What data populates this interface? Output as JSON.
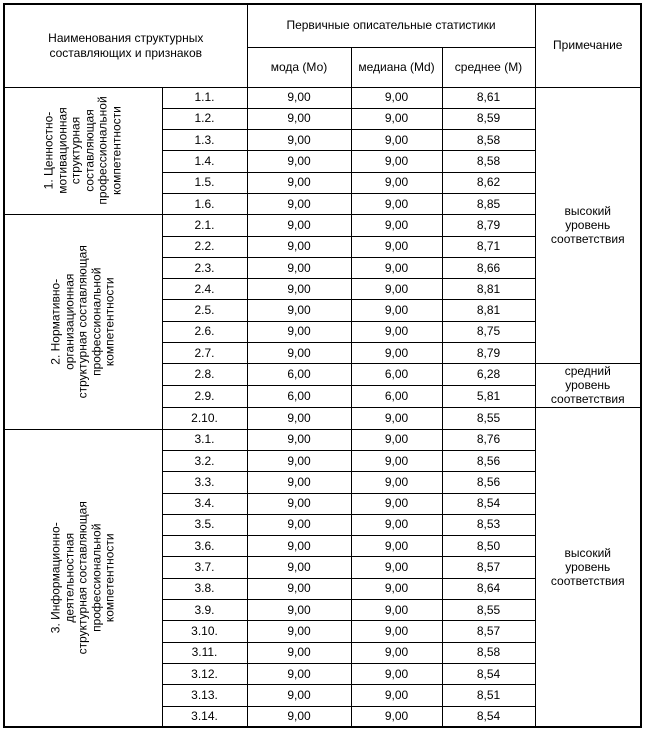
{
  "table": {
    "header": {
      "names_col": "Наименования структурных составляющих и признаков",
      "stats_group": "Первичные описательные статистики",
      "stats_cols": [
        "мода (Мо)",
        "медиана (Md)",
        "среднее (М)"
      ],
      "note_col": "Примечание"
    },
    "groups": [
      {
        "label": "1. Ценностно-мотивационная структурная составляющая профессиональной компетентности",
        "rows": [
          {
            "id": "1.1.",
            "mo": "9,00",
            "md": "9,00",
            "m": "8,61"
          },
          {
            "id": "1.2.",
            "mo": "9,00",
            "md": "9,00",
            "m": "8,59"
          },
          {
            "id": "1.3.",
            "mo": "9,00",
            "md": "9,00",
            "m": "8,58"
          },
          {
            "id": "1.4.",
            "mo": "9,00",
            "md": "9,00",
            "m": "8,58"
          },
          {
            "id": "1.5.",
            "mo": "9,00",
            "md": "9,00",
            "m": "8,62"
          },
          {
            "id": "1.6.",
            "mo": "9,00",
            "md": "9,00",
            "m": "8,85"
          }
        ]
      },
      {
        "label": "2. Нормативно-организационная структурная составляющая профессиональной компетентности",
        "rows": [
          {
            "id": "2.1.",
            "mo": "9,00",
            "md": "9,00",
            "m": "8,79"
          },
          {
            "id": "2.2.",
            "mo": "9,00",
            "md": "9,00",
            "m": "8,71"
          },
          {
            "id": "2.3.",
            "mo": "9,00",
            "md": "9,00",
            "m": "8,66"
          },
          {
            "id": "2.4.",
            "mo": "9,00",
            "md": "9,00",
            "m": "8,81"
          },
          {
            "id": "2.5.",
            "mo": "9,00",
            "md": "9,00",
            "m": "8,81"
          },
          {
            "id": "2.6.",
            "mo": "9,00",
            "md": "9,00",
            "m": "8,75"
          },
          {
            "id": "2.7.",
            "mo": "9,00",
            "md": "9,00",
            "m": "8,79"
          },
          {
            "id": "2.8.",
            "mo": "6,00",
            "md": "6,00",
            "m": "6,28"
          },
          {
            "id": "2.9.",
            "mo": "6,00",
            "md": "6,00",
            "m": "5,81"
          },
          {
            "id": "2.10.",
            "mo": "9,00",
            "md": "9,00",
            "m": "8,55"
          }
        ]
      },
      {
        "label": "3. Информационно-деятельностная структурная составляющая профессиональной компетентности",
        "rows": [
          {
            "id": "3.1.",
            "mo": "9,00",
            "md": "9,00",
            "m": "8,76"
          },
          {
            "id": "3.2.",
            "mo": "9,00",
            "md": "9,00",
            "m": "8,56"
          },
          {
            "id": "3.3.",
            "mo": "9,00",
            "md": "9,00",
            "m": "8,56"
          },
          {
            "id": "3.4.",
            "mo": "9,00",
            "md": "9,00",
            "m": "8,54"
          },
          {
            "id": "3.5.",
            "mo": "9,00",
            "md": "9,00",
            "m": "8,53"
          },
          {
            "id": "3.6.",
            "mo": "9,00",
            "md": "9,00",
            "m": "8,50"
          },
          {
            "id": "3.7.",
            "mo": "9,00",
            "md": "9,00",
            "m": "8,57"
          },
          {
            "id": "3.8.",
            "mo": "9,00",
            "md": "9,00",
            "m": "8,64"
          },
          {
            "id": "3.9.",
            "mo": "9,00",
            "md": "9,00",
            "m": "8,55"
          },
          {
            "id": "3.10.",
            "mo": "9,00",
            "md": "9,00",
            "m": "8,57"
          },
          {
            "id": "3.11.",
            "mo": "9,00",
            "md": "9,00",
            "m": "8,58"
          },
          {
            "id": "3.12.",
            "mo": "9,00",
            "md": "9,00",
            "m": "8,54"
          },
          {
            "id": "3.13.",
            "mo": "9,00",
            "md": "9,00",
            "m": "8,51"
          },
          {
            "id": "3.14.",
            "mo": "9,00",
            "md": "9,00",
            "m": "8,54"
          }
        ]
      }
    ],
    "notes": [
      {
        "label": "высокий уровень соответствия",
        "from": "1.1.",
        "to": "2.7."
      },
      {
        "label": "средний уровень соответствия",
        "from": "2.8.",
        "to": "2.9."
      },
      {
        "label": "высокий уровень соответствия",
        "from": "2.10.",
        "to": "3.14."
      }
    ]
  }
}
